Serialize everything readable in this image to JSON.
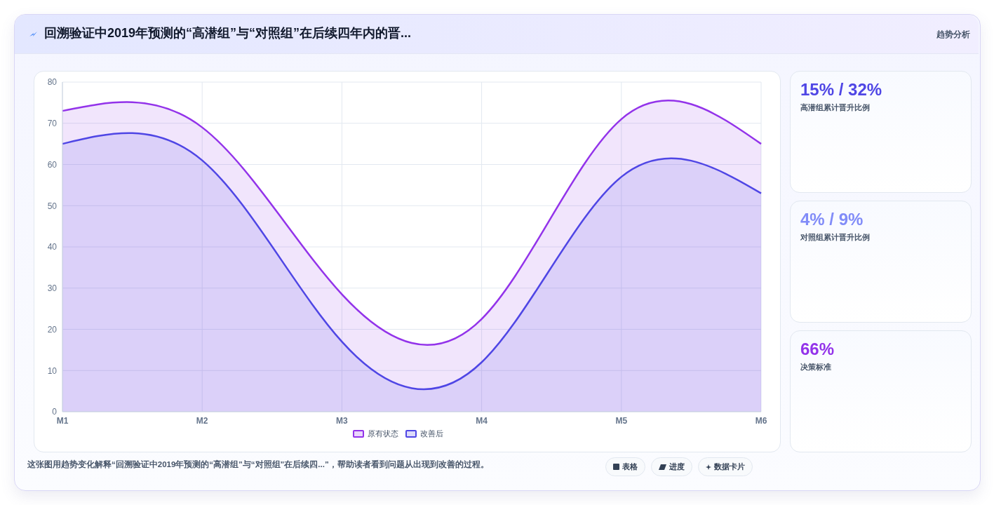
{
  "chart_data": [
    {
      "type": "area",
      "title": "回溯验证中2019年预测的“高潜组”与“对照组”在后续四年内的晋...",
      "categories": [
        "M1",
        "M2",
        "M3",
        "M4",
        "M5",
        "M6"
      ],
      "series": [
        {
          "name": "原有状态",
          "color": "#9333ea",
          "values": [
            73,
            69,
            28.5,
            22.5,
            71,
            65
          ]
        },
        {
          "name": "改善后",
          "color": "#4f46e5",
          "values": [
            65,
            61,
            17,
            12,
            57,
            53
          ]
        }
      ],
      "ylim": [
        0,
        80
      ],
      "yticks": [
        0,
        10,
        20,
        30,
        40,
        50,
        60,
        70,
        80
      ],
      "grid": true,
      "legend": "bottom",
      "marker": "none",
      "line_style": "solid",
      "annotations": [
        "趋势分析",
        "这张图用趋势变化解释“回溯验证中2019年预测的“高潜组”与“对照组”在后续四...”，帮助读者看到问题从出现到改善的过程。",
        "表格",
        "进度",
        "数据卡片"
      ]
    },
    {
      "type": "other",
      "title": "15% / 32%",
      "subtitle": "高潜组累计晋升比例",
      "color": "#4f46e5"
    },
    {
      "type": "other",
      "title": "4% / 9%",
      "subtitle": "对照组累计晋升比例",
      "color": "#818cf8"
    },
    {
      "type": "other",
      "title": "66%",
      "subtitle": "决策标准",
      "color": "#9333ea"
    }
  ]
}
